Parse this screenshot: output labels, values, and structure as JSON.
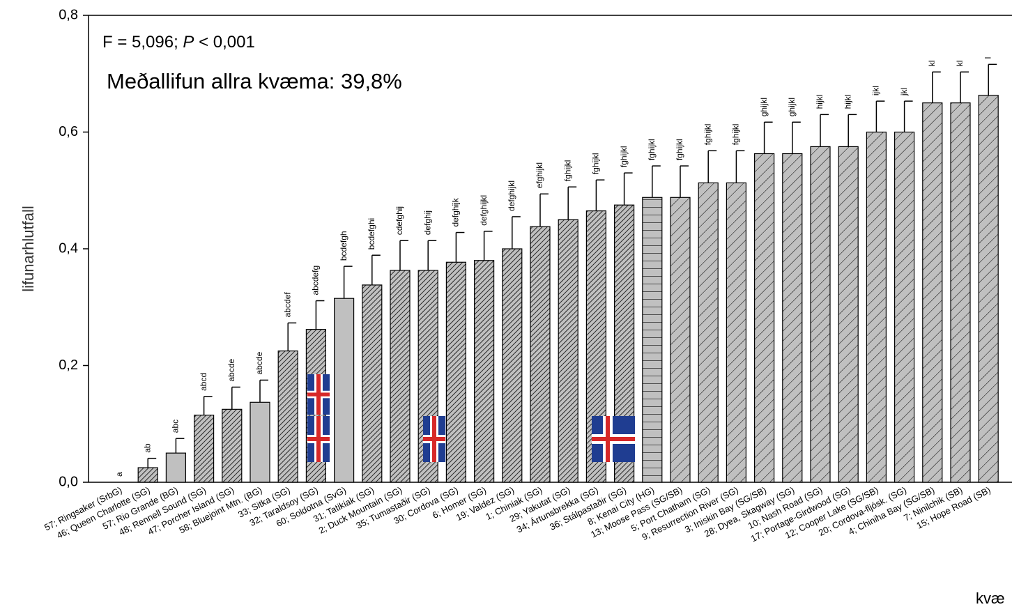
{
  "chart_data": {
    "type": "bar",
    "annotation": [
      "F = 5,096; ",
      "P",
      " < 0,001"
    ],
    "subtitle": "Meðallifun allra kvæma: 39,8%",
    "y_label": "lifunarhlutfall",
    "x_label": "kvæ",
    "ylim": [
      0,
      0.8
    ],
    "yticks": [
      {
        "value": 0,
        "label": "0,0"
      },
      {
        "value": 0.2,
        "label": "0,2"
      },
      {
        "value": 0.4,
        "label": "0,4"
      },
      {
        "value": 0.6,
        "label": "0,6"
      },
      {
        "value": 0.8,
        "label": "0,8"
      }
    ],
    "categories": [
      "57; Ringsaker (SrbG)",
      "46; Queen Charlotte (SG)",
      "57; Rio Grande (BG)",
      "48; Rennell Sound (SG)",
      "47; Porcher Island (SG)",
      "58; Bluejoint Mtn. (BG)",
      "33; Sitka (SG)",
      "32; Taraldsoy (SG)",
      "60; Soldotna (SvG)",
      "31; Tatikiak (SG)",
      "2; Duck Mountain (SG)",
      "35; Tumastaðir (SG)",
      "30; Cordova (SG)",
      "6; Homer (SG)",
      "19; Valdez (SG)",
      "1; Chiniak (SG)",
      "29; Yakutat (SG)",
      "34; Ártunsbrekka (SG)",
      "36; Stálpastaðir (SG)",
      "8; Kenai City (HG)",
      "13; Moose Pass (SG/SB)",
      "5; Port Chatham (SG)",
      "9; Resurrection River (SG)",
      "3; Iniskin Bay (SG/SB)",
      "28; Dyea, Skagway (SG)",
      "10; Nash Road (SG)",
      "17; Portage-Girdwood (SG)",
      "12; Cooper Lake (SG/SB)",
      "20; Cordova-fljósk. (SG)",
      "4; Chiniha Bay (SG/SB)",
      "7; Ninilchik (SB)",
      "15; Hope Road (SB)"
    ],
    "values": [
      0,
      0.025,
      0.05,
      0.115,
      0.125,
      0.137,
      0.225,
      0.262,
      0.315,
      0.338,
      0.363,
      0.363,
      0.377,
      0.38,
      0.4,
      0.438,
      0.45,
      0.465,
      0.475,
      0.488,
      0.488,
      0.513,
      0.513,
      0.563,
      0.563,
      0.575,
      0.575,
      0.6,
      0.6,
      0.65,
      0.65,
      0.663
    ],
    "errors": [
      0,
      0.016,
      0.025,
      0.032,
      0.038,
      0.038,
      0.048,
      0.049,
      0.055,
      0.051,
      0.051,
      0.051,
      0.051,
      0.05,
      0.055,
      0.056,
      0.056,
      0.053,
      0.055,
      0.054,
      0.054,
      0.055,
      0.055,
      0.054,
      0.054,
      0.055,
      0.055,
      0.053,
      0.053,
      0.053,
      0.053,
      0.053
    ],
    "letters": [
      "a",
      "ab",
      "abc",
      "abcd",
      "abcde",
      "abcde",
      "abcdef",
      "abcdefg",
      "bcdefgh",
      "bcdefghi",
      "cdefghij",
      "defghij",
      "defghijk",
      "defghijkl",
      "defghijkl",
      "efghijkl",
      "fghijkl",
      "fghijkl",
      "fghijkl",
      "fghijkl",
      "fghijkl",
      "fghijkl",
      "fghijkl",
      "ghijkl",
      "ghijkl",
      "hijkl",
      "hijkl",
      "ijkl",
      "jkl",
      "kl",
      "kl",
      "l"
    ],
    "fills": [
      "dense",
      "dense",
      "solid",
      "dense",
      "dense",
      "solid",
      "dense",
      "dense",
      "solid",
      "dense",
      "dense",
      "dense",
      "dense",
      "dense",
      "dense",
      "dense",
      "dense",
      "dense",
      "dense",
      "horizontal",
      "sparse",
      "sparse",
      "sparse",
      "sparse",
      "sparse",
      "sparse",
      "sparse",
      "sparse",
      "sparse",
      "sparse",
      "sparse",
      "sparse"
    ],
    "color": "#c0c0c0"
  }
}
